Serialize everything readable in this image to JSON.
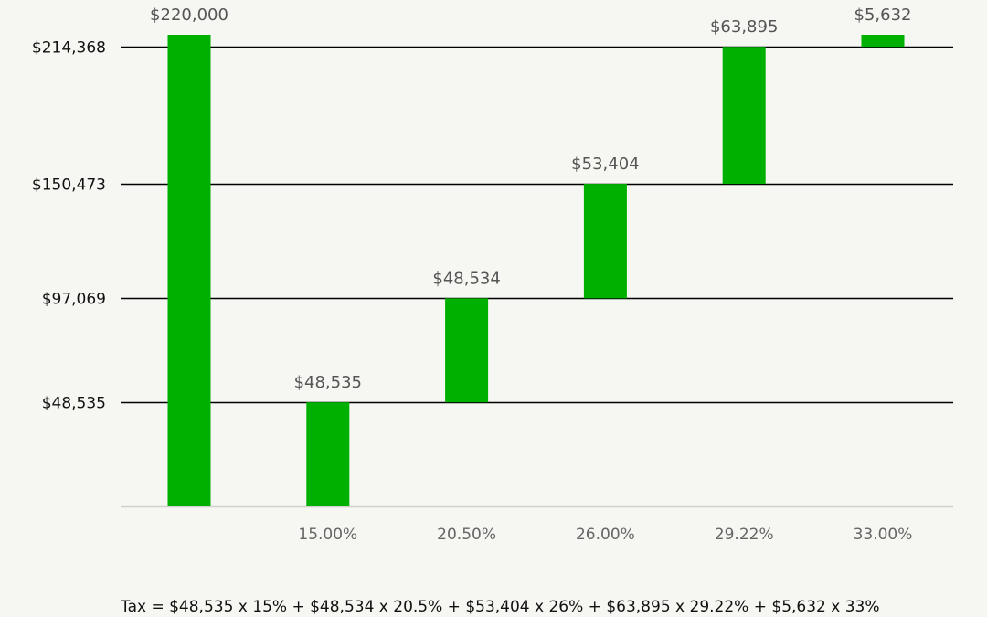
{
  "chart_data": {
    "type": "bar",
    "subtype": "waterfall",
    "categories": [
      "",
      "15.00%",
      "20.50%",
      "26.00%",
      "29.22%",
      "33.00%"
    ],
    "bars": [
      {
        "bottom": 0,
        "top": 220000,
        "label": "$220,000"
      },
      {
        "bottom": 0,
        "top": 48535,
        "label": "$48,535"
      },
      {
        "bottom": 48535,
        "top": 97069,
        "label": "$48,534"
      },
      {
        "bottom": 97069,
        "top": 150473,
        "label": "$53,404"
      },
      {
        "bottom": 150473,
        "top": 214368,
        "label": "$63,895"
      },
      {
        "bottom": 214368,
        "top": 220000,
        "label": "$5,632"
      }
    ],
    "values": [
      220000,
      48535,
      48534,
      53404,
      63895,
      5632
    ],
    "gridlines": [
      {
        "value": 48535,
        "label": "$48,535"
      },
      {
        "value": 97069,
        "label": "$97,069"
      },
      {
        "value": 150473,
        "label": "$150,473"
      },
      {
        "value": 214368,
        "label": "$214,368"
      }
    ],
    "ylim": [
      0,
      220000
    ],
    "bar_color": "#00b000",
    "grid": true,
    "legend": "none",
    "title": "",
    "xlabel": "",
    "ylabel": ""
  },
  "footnote": "Tax = $48,535 x 15% + $48,534 x 20.5% + $53,404 x 26% + $63,895 x 29.22% + $5,632 x 33%"
}
